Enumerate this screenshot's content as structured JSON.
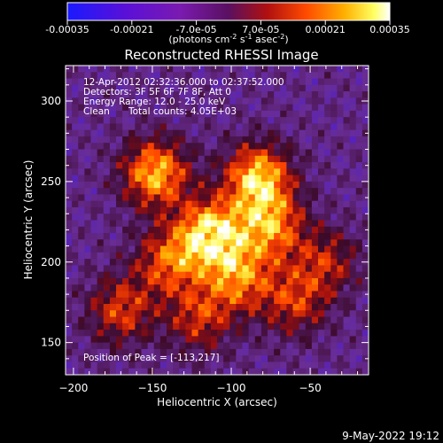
{
  "colorbar": {
    "tick_labels": [
      "-0.00035",
      "-0.00021",
      "-7.0e-05",
      "7.0e-05",
      "0.00021",
      "0.00035"
    ],
    "units_prefix": "(photons cm",
    "units_exp1": "-2",
    "units_mid1": " s",
    "units_exp2": "-1",
    "units_mid2": " asec",
    "units_exp3": "-2",
    "units_suffix": ")"
  },
  "chart_data": {
    "type": "heatmap",
    "title": "Reconstructed RHESSI Image",
    "xlabel": "Heliocentric X (arcsec)",
    "ylabel": "Heliocentric Y (arcsec)",
    "xlim": [
      -205,
      -13
    ],
    "ylim": [
      130,
      322
    ],
    "x_ticks": [
      -200,
      -150,
      -100,
      -50
    ],
    "y_ticks": [
      150,
      200,
      250,
      300
    ],
    "colormap": "RHESSI (blue-purple-red-yellow-white)",
    "value_range": [
      -0.00035,
      0.00035
    ],
    "peak": [
      -113,
      217
    ],
    "sources": [
      {
        "x": -148,
        "y": 255,
        "intensity": 0.85
      },
      {
        "x": -113,
        "y": 217,
        "intensity": 1.0
      },
      {
        "x": -83,
        "y": 252,
        "intensity": 0.9
      },
      {
        "x": -75,
        "y": 222,
        "intensity": 0.7
      },
      {
        "x": -95,
        "y": 190,
        "intensity": 0.65
      },
      {
        "x": -140,
        "y": 200,
        "intensity": 0.6
      },
      {
        "x": -170,
        "y": 170,
        "intensity": 0.55
      },
      {
        "x": -120,
        "y": 165,
        "intensity": 0.5
      },
      {
        "x": -60,
        "y": 175,
        "intensity": 0.5
      },
      {
        "x": -40,
        "y": 200,
        "intensity": 0.45
      }
    ],
    "annotations": {
      "time_range": "12-Apr-2012 02:32:36.000 to 02:37:52.000",
      "detectors": "Detectors: 3F 5F 6F 7F 8F, Att 0",
      "energy_range": "Energy Range: 12.0 - 25.0 keV",
      "algorithm": "Clean",
      "total_counts": "Total counts: 4.05E+03",
      "peak_position": "Position of Peak = [-113,217]"
    }
  },
  "footer": {
    "date": "9-May-2022 19:12"
  }
}
